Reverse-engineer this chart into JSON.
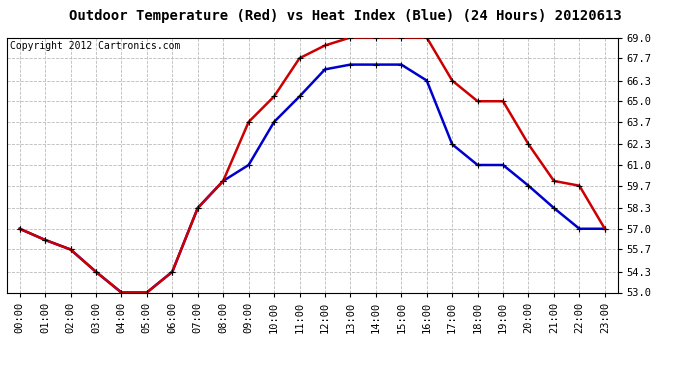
{
  "title": "Outdoor Temperature (Red) vs Heat Index (Blue) (24 Hours) 20120613",
  "copyright": "Copyright 2012 Cartronics.com",
  "hours": [
    "00:00",
    "01:00",
    "02:00",
    "03:00",
    "04:00",
    "05:00",
    "06:00",
    "07:00",
    "08:00",
    "09:00",
    "10:00",
    "11:00",
    "12:00",
    "13:00",
    "14:00",
    "15:00",
    "16:00",
    "17:00",
    "18:00",
    "19:00",
    "20:00",
    "21:00",
    "22:00",
    "23:00"
  ],
  "temp_red": [
    57.0,
    56.3,
    55.7,
    54.3,
    53.0,
    53.0,
    54.3,
    58.3,
    60.0,
    63.7,
    65.3,
    67.7,
    68.5,
    69.0,
    69.0,
    69.0,
    69.0,
    66.3,
    65.0,
    65.0,
    62.3,
    60.0,
    59.7,
    57.0
  ],
  "heat_blue": [
    57.0,
    56.3,
    55.7,
    54.3,
    53.0,
    53.0,
    54.3,
    58.3,
    60.0,
    61.0,
    63.7,
    65.3,
    67.0,
    67.3,
    67.3,
    67.3,
    66.3,
    62.3,
    61.0,
    61.0,
    59.7,
    58.3,
    57.0,
    57.0
  ],
  "ylim": [
    53.0,
    69.0
  ],
  "yticks": [
    53.0,
    54.3,
    55.7,
    57.0,
    58.3,
    59.7,
    61.0,
    62.3,
    63.7,
    65.0,
    66.3,
    67.7,
    69.0
  ],
  "red_color": "#cc0000",
  "blue_color": "#0000cc",
  "bg_color": "#ffffff",
  "plot_bg_color": "#ffffff",
  "grid_color": "#bbbbbb",
  "title_fontsize": 10,
  "copyright_fontsize": 7,
  "tick_fontsize": 7.5,
  "line_width": 1.8,
  "marker_size": 5
}
